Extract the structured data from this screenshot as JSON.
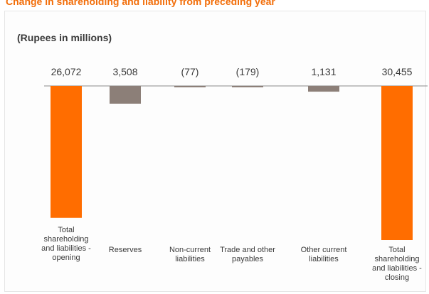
{
  "header": {
    "title": "Change in shareholding and liability from preceding year",
    "unit_label": "(Rupees in millions)"
  },
  "colors": {
    "total": "#ff6d00",
    "delta": "#8c7f78",
    "axis": "#8a8a8a"
  },
  "chart_data": {
    "type": "bar",
    "variant": "waterfall",
    "title": "Change in shareholding and liability from preceding year",
    "ylabel": "(Rupees in millions)",
    "categories": [
      "Total shareholding and liabilities - opening",
      "Reserves",
      "Non-current liabilities",
      "Trade and other payables",
      "Other current liabilities",
      "Total shareholding and liabilities - closing"
    ],
    "values": [
      26072,
      3508,
      -77,
      -179,
      1131,
      30455
    ],
    "value_labels": [
      "26,072",
      "3,508",
      "(77)",
      "(179)",
      "1,131",
      "30,455"
    ],
    "kinds": [
      "total",
      "delta",
      "delta",
      "delta",
      "delta",
      "total"
    ],
    "grid": false,
    "legend": "none"
  }
}
